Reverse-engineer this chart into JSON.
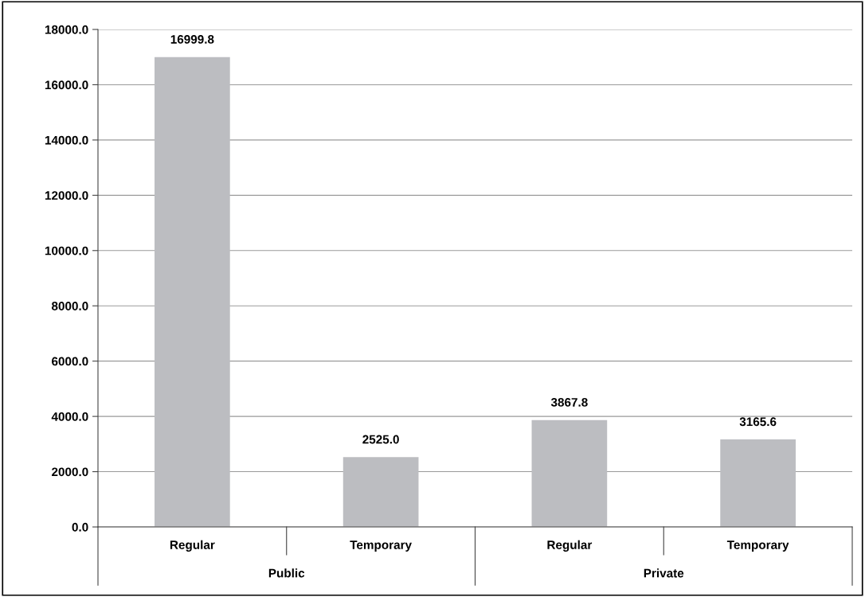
{
  "chart_data": {
    "type": "bar",
    "categories": [
      "Regular",
      "Temporary",
      "Regular",
      "Temporary"
    ],
    "values": [
      16999.8,
      2525.0,
      3867.8,
      3165.6
    ],
    "value_labels": [
      "16999.8",
      "2525.0",
      "3867.8",
      "3165.6"
    ],
    "color": "#bcbdc1",
    "ylim": [
      0,
      18000
    ],
    "yticks": [
      {
        "value": 0,
        "label": "0.0"
      },
      {
        "value": 2000,
        "label": "2000.0"
      },
      {
        "value": 4000,
        "label": "4000.0"
      },
      {
        "value": 6000,
        "label": "6000.0"
      },
      {
        "value": 8000,
        "label": "8000.0"
      },
      {
        "value": 10000,
        "label": "10000.0"
      },
      {
        "value": 12000,
        "label": "12000.0"
      },
      {
        "value": 14000,
        "label": "14000.0"
      },
      {
        "value": 16000,
        "label": "16000.0"
      },
      {
        "value": 18000,
        "label": "18000.0"
      }
    ],
    "grid": "y",
    "annotations": [
      "Public",
      "Private"
    ]
  }
}
